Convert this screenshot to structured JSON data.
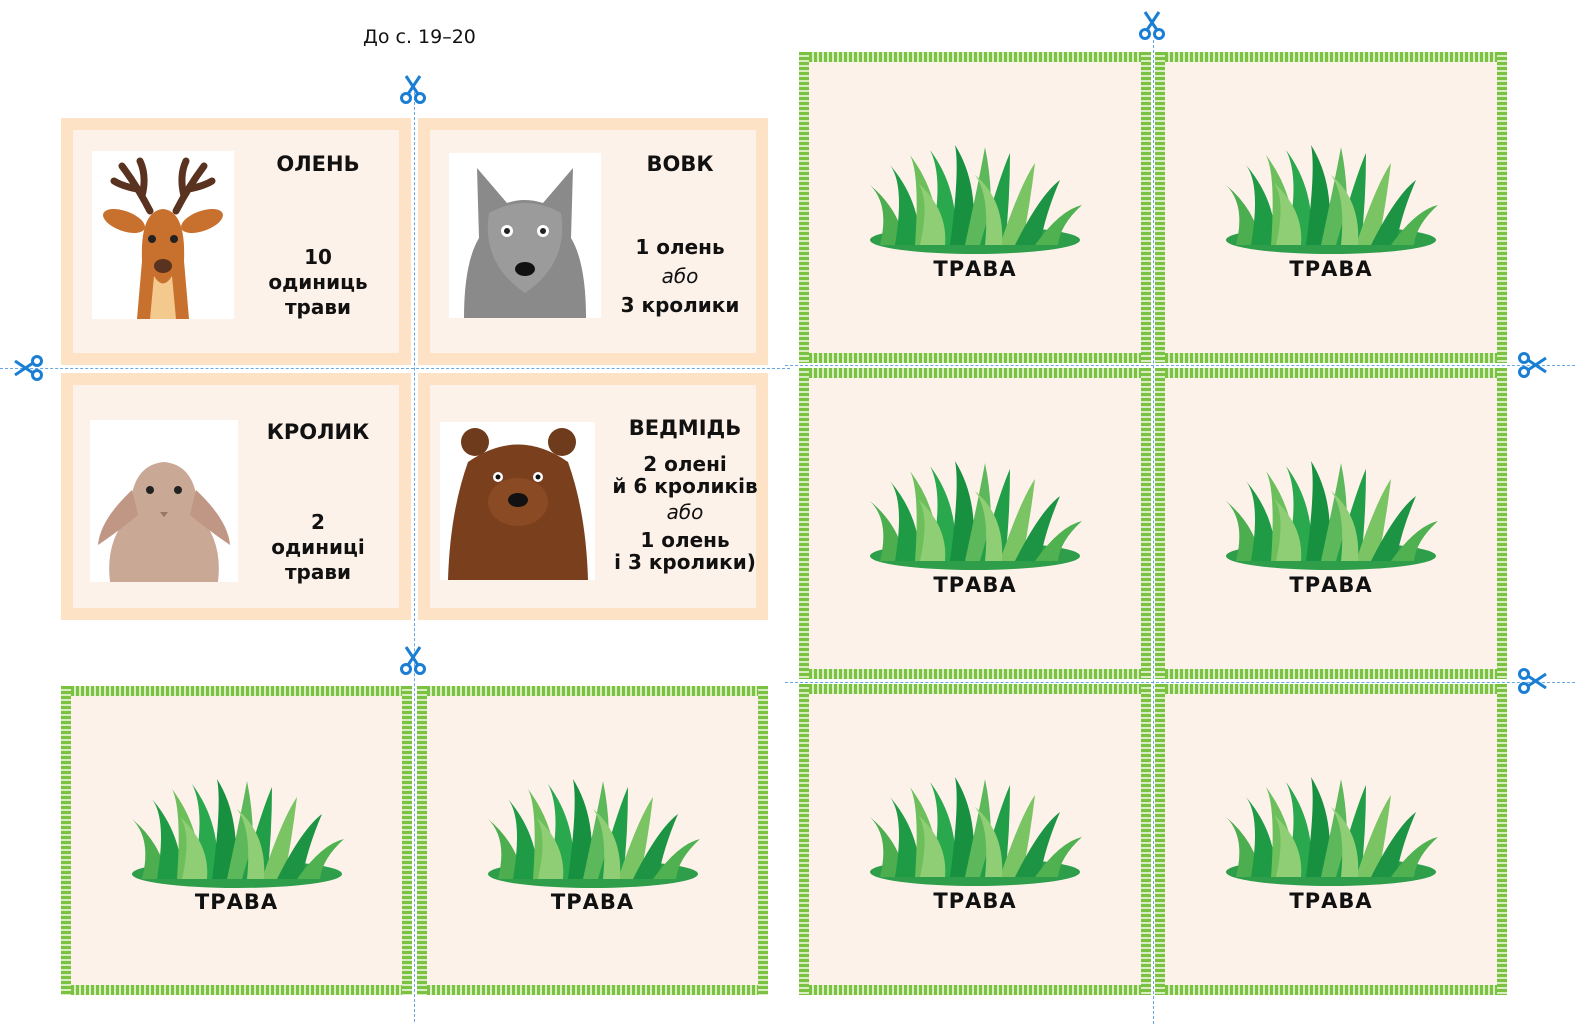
{
  "header": {
    "page_reference": "До с. 19–20"
  },
  "colors": {
    "animal_border": "#fde2c5",
    "card_fill": "#fdf2ea",
    "grass_stripe": "#7cc242",
    "cut_line": "#6aa6e0",
    "scissors": "#1a7fd4"
  },
  "animal_cards": [
    {
      "name": "ОЛЕНЬ",
      "icon": "deer-icon",
      "lines": [
        "10",
        "одиниць",
        "трави"
      ]
    },
    {
      "name": "ВОВК",
      "icon": "wolf-icon",
      "lines": [
        "1 олень",
        "або",
        "3 кролики"
      ]
    },
    {
      "name": "КРОЛИК",
      "icon": "rabbit-icon",
      "lines": [
        "2",
        "одиниці",
        "трави"
      ]
    },
    {
      "name": "ВЕДМІДЬ",
      "icon": "bear-icon",
      "lines": [
        "2 олені",
        "й 6 кроликів",
        "або",
        "1 олень",
        "і 3 кролики)"
      ]
    }
  ],
  "grass_cards": [
    {
      "label": "ТРАВА"
    },
    {
      "label": "ТРАВА"
    },
    {
      "label": "ТРАВА"
    },
    {
      "label": "ТРАВА"
    },
    {
      "label": "ТРАВА"
    },
    {
      "label": "ТРАВА"
    },
    {
      "label": "ТРАВА"
    },
    {
      "label": "ТРАВА"
    }
  ]
}
